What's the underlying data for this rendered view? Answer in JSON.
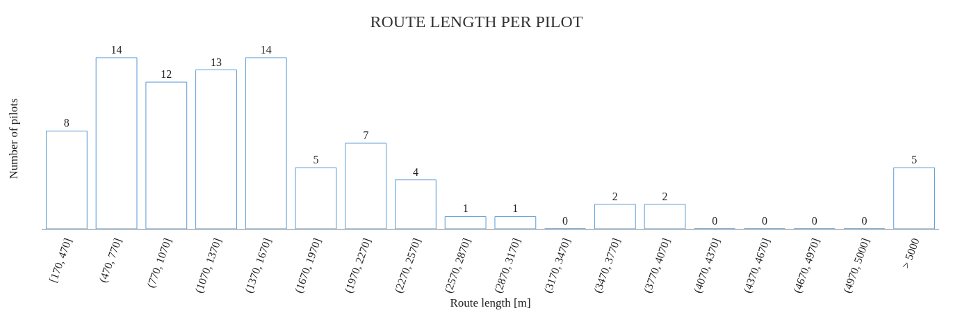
{
  "chart_data": {
    "type": "bar",
    "title": "ROUTE LENGTH PER PILOT",
    "xlabel": "Route length [m]",
    "ylabel": "Number of pilots",
    "categories": [
      "[170, 470]",
      "(470, 770]",
      "(770, 1070]",
      "(1070, 1370]",
      "(1370, 1670]",
      "(1670, 1970]",
      "(1970, 2270]",
      "(2270, 2570]",
      "(2570, 2870]",
      "(2870, 3170]",
      "(3170, 3470]",
      "(3470, 3770]",
      "(3770, 4070]",
      "(4070, 4370]",
      "(4370, 4670]",
      "(4670, 4970]",
      "(4970, 5000]",
      "> 5000"
    ],
    "values": [
      8,
      14,
      12,
      13,
      14,
      5,
      7,
      4,
      1,
      1,
      0,
      2,
      2,
      0,
      0,
      0,
      0,
      5
    ],
    "color": "#5b9bd5",
    "data_labels": true,
    "tick_labels": "x",
    "grid": false,
    "legend": false
  }
}
